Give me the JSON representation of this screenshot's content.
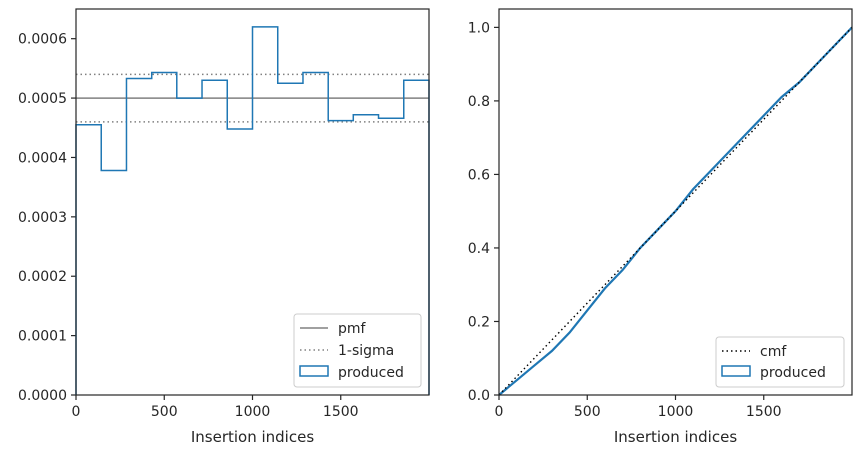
{
  "chart_data": [
    {
      "type": "step-histogram",
      "xlabel": "Insertion indices",
      "ylabel": "",
      "xlim": [
        0,
        2000
      ],
      "ylim": [
        0,
        0.00065
      ],
      "xticks": [
        {
          "value": 0,
          "label": "0"
        },
        {
          "value": 500,
          "label": "500"
        },
        {
          "value": 1000,
          "label": "1000"
        },
        {
          "value": 1500,
          "label": "1500"
        }
      ],
      "yticks": [
        {
          "value": 0,
          "label": "0.0000"
        },
        {
          "value": 0.0001,
          "label": "0.0001"
        },
        {
          "value": 0.0002,
          "label": "0.0002"
        },
        {
          "value": 0.0003,
          "label": "0.0003"
        },
        {
          "value": 0.0004,
          "label": "0.0004"
        },
        {
          "value": 0.0005,
          "label": "0.0005"
        },
        {
          "value": 0.0006,
          "label": "0.0006"
        }
      ],
      "bin_edges": [
        0,
        143,
        286,
        429,
        571,
        714,
        857,
        1000,
        1143,
        1286,
        1429,
        1571,
        1714,
        1857,
        2000
      ],
      "values": [
        0.000455,
        0.000378,
        0.000533,
        0.000543,
        0.0005,
        0.00053,
        0.000448,
        0.00062,
        0.000525,
        0.000543,
        0.000462,
        0.000472,
        0.000466,
        0.00053
      ],
      "pmf": 0.0005,
      "sigma_band": [
        0.00046,
        0.00054
      ],
      "legend": {
        "placement": "lower-right",
        "entries": [
          {
            "label": "pmf",
            "style": "solid",
            "color": "#808080"
          },
          {
            "label": "1-sigma",
            "style": "dotted",
            "color": "#808080"
          },
          {
            "label": "produced",
            "style": "patch",
            "color": "#1f77b4"
          }
        ]
      },
      "colors": {
        "produced": "#1f77b4",
        "reference": "#808080"
      }
    },
    {
      "type": "line",
      "xlabel": "Insertion indices",
      "ylabel": "",
      "xlim": [
        0,
        2000
      ],
      "ylim": [
        0,
        1.05
      ],
      "xticks": [
        {
          "value": 0,
          "label": "0"
        },
        {
          "value": 500,
          "label": "500"
        },
        {
          "value": 1000,
          "label": "1000"
        },
        {
          "value": 1500,
          "label": "1500"
        }
      ],
      "yticks": [
        {
          "value": 0,
          "label": "0.0"
        },
        {
          "value": 0.2,
          "label": "0.2"
        },
        {
          "value": 0.4,
          "label": "0.4"
        },
        {
          "value": 0.6,
          "label": "0.6"
        },
        {
          "value": 0.8,
          "label": "0.8"
        },
        {
          "value": 1.0,
          "label": "1.0"
        }
      ],
      "cmf": {
        "x": [
          0,
          2000
        ],
        "y": [
          0,
          1
        ]
      },
      "produced": {
        "x": [
          0,
          100,
          200,
          300,
          400,
          500,
          600,
          700,
          800,
          900,
          1000,
          1100,
          1200,
          1300,
          1400,
          1500,
          1600,
          1700,
          1800,
          1900,
          2000
        ],
        "y": [
          0,
          0.04,
          0.08,
          0.12,
          0.17,
          0.23,
          0.29,
          0.34,
          0.4,
          0.45,
          0.5,
          0.56,
          0.61,
          0.66,
          0.71,
          0.76,
          0.81,
          0.85,
          0.9,
          0.95,
          1.0
        ]
      },
      "legend": {
        "placement": "lower-right",
        "entries": [
          {
            "label": "cmf",
            "style": "dotted",
            "color": "#000000"
          },
          {
            "label": "produced",
            "style": "patch",
            "color": "#1f77b4"
          }
        ]
      },
      "colors": {
        "produced": "#1f77b4",
        "cmf": "#000000"
      }
    }
  ]
}
